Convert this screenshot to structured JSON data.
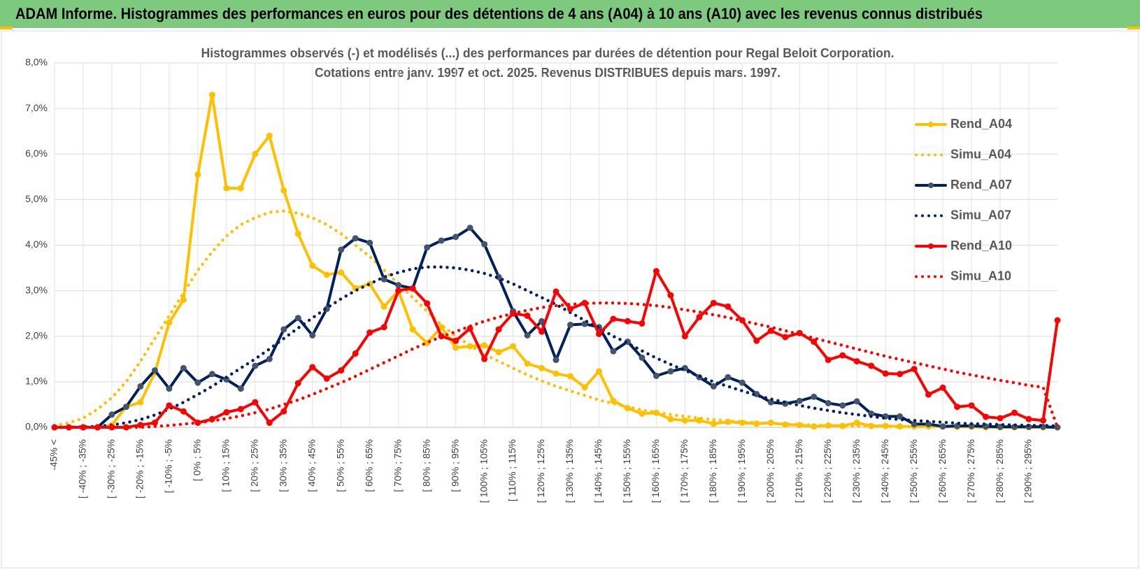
{
  "header": {
    "title": "ADAM Informe. Histogrammes des performances en euros pour des détentions de 4 ans (A04) à 10 ans (A10) avec les revenus connus distribués"
  },
  "chart_data": {
    "type": "line",
    "title": "Histogrammes observés (-) et modélisés (...) des performances par durées de détention pour Regal Beloit Corporation.",
    "subtitle": "Cotations entre janv. 1997 et oct. 2025.  Revenus DISTRIBUES depuis mars. 1997.",
    "categories": [
      "-45% <",
      null,
      "[ -40% ; -35%",
      null,
      "[ -30% ; -25%",
      null,
      "[ -20% ; -15%",
      null,
      "[ -10% ; -5%",
      null,
      "[ 0% ; 5%",
      null,
      "[ 10% ; 15%",
      null,
      "[ 20% ; 25%",
      null,
      "[ 30% ; 35%",
      null,
      "[ 40% ; 45%",
      null,
      "[ 50% ; 55%",
      null,
      "[ 60% ; 65%",
      null,
      "[ 70% ; 75%",
      null,
      "[ 80% ; 85%",
      null,
      "[ 90% ; 95%",
      null,
      "[ 100% ; 105%",
      null,
      "[ 110% ; 115%",
      null,
      "[ 120% ; 125%",
      null,
      "[ 130% ; 135%",
      null,
      "[ 140% ; 145%",
      null,
      "[ 150% ; 155%",
      null,
      "[ 160% ; 165%",
      null,
      "[ 170% ; 175%",
      null,
      "[ 180% ; 185%",
      null,
      "[ 190% ; 195%",
      null,
      "[ 200% ; 205%",
      null,
      "[ 210% ; 215%",
      null,
      "[ 220% ; 225%",
      null,
      "[ 230% ; 235%",
      null,
      "[ 240% ; 245%",
      null,
      "[ 250% ; 255%",
      null,
      "[ 260% ; 265%",
      null,
      "[ 270% ; 275%",
      null,
      "[ 280% ; 285%",
      null,
      "[ 290% ; 295%",
      null,
      null
    ],
    "series": [
      {
        "name": "Rend_A04",
        "color": "#FFC000",
        "style": "solid",
        "markers": true,
        "values": [
          0,
          0,
          0,
          0,
          0.05,
          0.45,
          0.55,
          1.2,
          2.3,
          2.8,
          5.55,
          7.3,
          5.25,
          5.25,
          6.0,
          6.4,
          5.2,
          4.25,
          3.55,
          3.35,
          3.4,
          3.05,
          3.15,
          2.65,
          3.0,
          2.15,
          1.85,
          2.2,
          1.75,
          1.78,
          1.8,
          1.65,
          1.78,
          1.4,
          1.3,
          1.18,
          1.12,
          0.88,
          1.23,
          0.58,
          0.42,
          0.3,
          0.32,
          0.18,
          0.15,
          0.15,
          0.08,
          0.12,
          0.1,
          0.08,
          0.1,
          0.06,
          0.05,
          0.02,
          0.04,
          0.03,
          0.1,
          0.03,
          0.03,
          0.02,
          0.02,
          0.02,
          0.02,
          0.01,
          0.01,
          0,
          0,
          0,
          0,
          0,
          0
        ]
      },
      {
        "name": "Simu_A04",
        "color": "#FFC000",
        "style": "dotted",
        "markers": false,
        "values": [
          0.03,
          0.1,
          0.2,
          0.4,
          0.65,
          1.0,
          1.45,
          1.95,
          2.45,
          2.95,
          3.45,
          3.85,
          4.2,
          4.45,
          4.6,
          4.72,
          4.75,
          4.7,
          4.6,
          4.45,
          4.25,
          4.0,
          3.75,
          3.45,
          3.15,
          2.85,
          2.55,
          2.25,
          2.0,
          1.8,
          1.6,
          1.45,
          1.3,
          1.15,
          1.02,
          0.9,
          0.8,
          0.7,
          0.6,
          0.52,
          0.45,
          0.38,
          0.33,
          0.28,
          0.24,
          0.2,
          0.17,
          0.14,
          0.12,
          0.1,
          0.08,
          0.07,
          0.06,
          0.05,
          0.04,
          0.03,
          0.03,
          0.02,
          0.02,
          0.01,
          0.01,
          0.01,
          0.01,
          0.01,
          0.01,
          0.01,
          0.01,
          0.01,
          0.01,
          0.01,
          0.01
        ]
      },
      {
        "name": "Rend_A07",
        "color": "#002060",
        "marker_color": "#44546A",
        "style": "solid",
        "markers": true,
        "values": [
          0,
          0,
          0,
          0,
          0.28,
          0.45,
          0.9,
          1.25,
          0.85,
          1.3,
          0.98,
          1.17,
          1.05,
          0.85,
          1.35,
          1.5,
          2.15,
          2.4,
          2.02,
          2.6,
          3.9,
          4.15,
          4.05,
          3.25,
          3.12,
          3.05,
          3.95,
          4.1,
          4.18,
          4.38,
          4.02,
          3.3,
          2.55,
          2.02,
          2.33,
          1.48,
          2.25,
          2.27,
          2.2,
          1.67,
          1.88,
          1.53,
          1.13,
          1.23,
          1.3,
          1.1,
          0.9,
          1.1,
          0.98,
          0.73,
          0.55,
          0.52,
          0.58,
          0.67,
          0.53,
          0.48,
          0.57,
          0.3,
          0.24,
          0.24,
          0.07,
          0.07,
          0.02,
          0.03,
          0.03,
          0.02,
          0.01,
          0.01,
          0.01,
          0.01,
          0
        ]
      },
      {
        "name": "Simu_A07",
        "color": "#002060",
        "style": "dotted",
        "markers": false,
        "values": [
          0,
          0,
          0.01,
          0.02,
          0.05,
          0.1,
          0.17,
          0.27,
          0.4,
          0.55,
          0.72,
          0.9,
          1.1,
          1.3,
          1.5,
          1.72,
          1.95,
          2.18,
          2.4,
          2.62,
          2.82,
          3.0,
          3.15,
          3.3,
          3.4,
          3.48,
          3.52,
          3.52,
          3.5,
          3.45,
          3.38,
          3.28,
          3.15,
          3.0,
          2.85,
          2.7,
          2.52,
          2.35,
          2.18,
          2.0,
          1.85,
          1.68,
          1.52,
          1.38,
          1.25,
          1.12,
          1.0,
          0.9,
          0.8,
          0.7,
          0.62,
          0.55,
          0.48,
          0.42,
          0.37,
          0.32,
          0.28,
          0.24,
          0.2,
          0.17,
          0.15,
          0.13,
          0.11,
          0.09,
          0.08,
          0.07,
          0.06,
          0.05,
          0.04,
          0.04,
          0.03
        ]
      },
      {
        "name": "Rend_A10",
        "color": "#FF0000",
        "style": "solid",
        "markers": true,
        "values": [
          0,
          0,
          0,
          0,
          0,
          0,
          0.05,
          0.1,
          0.48,
          0.35,
          0.1,
          0.18,
          0.33,
          0.4,
          0.55,
          0.1,
          0.35,
          0.97,
          1.32,
          1.07,
          1.25,
          1.62,
          2.08,
          2.2,
          3.0,
          3.05,
          2.72,
          2.0,
          1.9,
          2.17,
          1.5,
          2.15,
          2.5,
          2.45,
          2.1,
          2.98,
          2.6,
          2.73,
          2.05,
          2.38,
          2.33,
          2.28,
          3.43,
          2.9,
          2.0,
          2.42,
          2.73,
          2.65,
          2.35,
          1.9,
          2.12,
          1.98,
          2.07,
          1.88,
          1.48,
          1.58,
          1.45,
          1.35,
          1.18,
          1.17,
          1.28,
          0.72,
          0.87,
          0.45,
          0.48,
          0.23,
          0.2,
          0.32,
          0.18,
          0.15,
          2.35
        ]
      },
      {
        "name": "Simu_A10",
        "color": "#FF0000",
        "style": "dotted",
        "markers": false,
        "values": [
          0,
          0,
          0,
          0,
          0,
          0,
          0,
          0.02,
          0.04,
          0.07,
          0.1,
          0.14,
          0.19,
          0.25,
          0.32,
          0.4,
          0.5,
          0.6,
          0.72,
          0.85,
          0.98,
          1.12,
          1.27,
          1.42,
          1.57,
          1.72,
          1.86,
          1.99,
          2.1,
          2.22,
          2.33,
          2.42,
          2.5,
          2.57,
          2.63,
          2.67,
          2.7,
          2.72,
          2.73,
          2.73,
          2.72,
          2.7,
          2.67,
          2.63,
          2.58,
          2.53,
          2.47,
          2.41,
          2.34,
          2.27,
          2.2,
          2.12,
          2.04,
          1.96,
          1.88,
          1.8,
          1.72,
          1.64,
          1.56,
          1.49,
          1.42,
          1.35,
          1.28,
          1.21,
          1.15,
          1.09,
          1.03,
          0.98,
          0.92,
          0.88,
          0
        ]
      }
    ],
    "ylim": [
      0,
      8
    ],
    "yticks": [
      {
        "value": 0,
        "label": "0,0%"
      },
      {
        "value": 1,
        "label": "1,0%"
      },
      {
        "value": 2,
        "label": "2,0%"
      },
      {
        "value": 3,
        "label": "3,0%"
      },
      {
        "value": 4,
        "label": "4,0%"
      },
      {
        "value": 5,
        "label": "5,0%"
      },
      {
        "value": 6,
        "label": "6,0%"
      },
      {
        "value": 7,
        "label": "7,0%"
      },
      {
        "value": 8,
        "label": "8,0%"
      }
    ],
    "grid": true
  }
}
